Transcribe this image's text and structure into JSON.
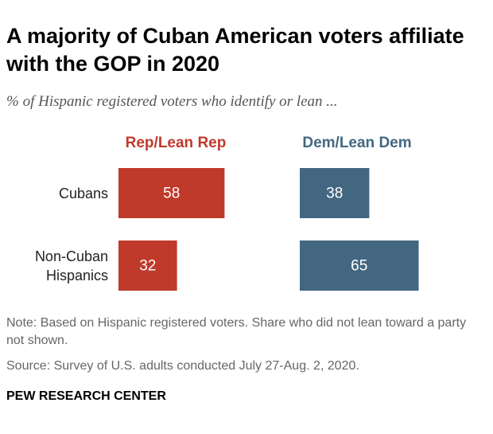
{
  "chart_data": {
    "type": "bar",
    "orientation": "horizontal",
    "title": "A majority of Cuban American voters affiliate with the GOP in 2020",
    "subtitle": "% of Hispanic registered voters who identify or lean ...",
    "categories": [
      "Cubans",
      "Non-Cuban Hispanics"
    ],
    "series": [
      {
        "name": "Rep/Lean Rep",
        "color": "#bf3a2b",
        "values": [
          58,
          32
        ]
      },
      {
        "name": "Dem/Lean Dem",
        "color": "#436781",
        "values": [
          38,
          65
        ]
      }
    ],
    "note": "Note: Based on Hispanic registered voters. Share who did not lean toward a party not shown.",
    "source": "Source: Survey of U.S. adults conducted July 27-Aug. 2, 2020.",
    "footer": "PEW RESEARCH CENTER"
  }
}
